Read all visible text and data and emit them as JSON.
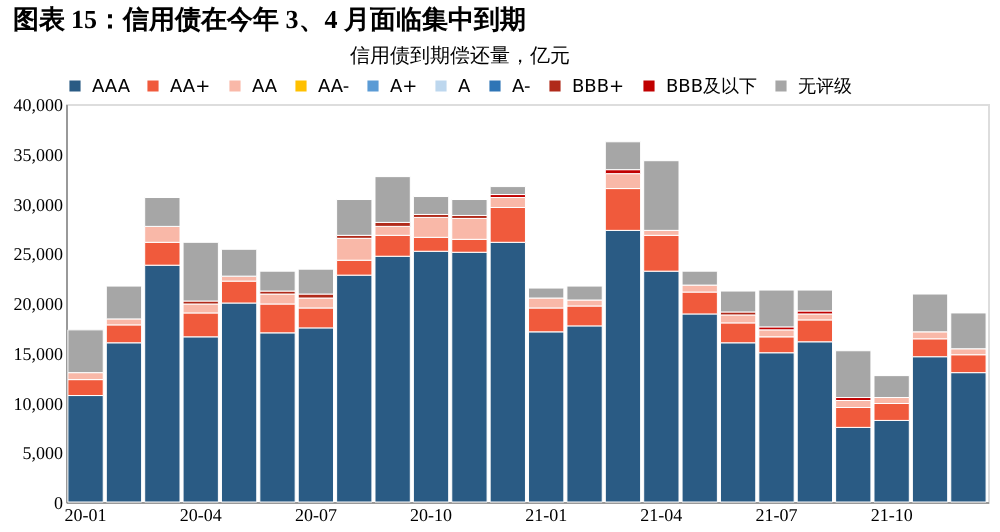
{
  "chart_data": {
    "type": "bar",
    "stacked": true,
    "title": "图表 15：信用债在今年 3、4 月面临集中到期",
    "legend_title": "信用债到期偿还量，亿元",
    "categories": [
      "20-01",
      null,
      null,
      "20-04",
      null,
      null,
      "20-07",
      null,
      null,
      "20-10",
      null,
      null,
      "21-01",
      null,
      null,
      "21-04",
      null,
      null,
      "21-07",
      null,
      null,
      "21-10",
      null,
      null
    ],
    "series": [
      {
        "name": "AAA",
        "color": "#2a5b84",
        "values": [
          10700,
          16000,
          23800,
          16600,
          20000,
          17000,
          17500,
          22800,
          24700,
          25200,
          25100,
          26100,
          17100,
          17700,
          27300,
          23200,
          18900,
          16000,
          15000,
          16100,
          7500,
          8200,
          14600,
          13000
        ]
      },
      {
        "name": "AA+",
        "color": "#f05a3c",
        "values": [
          1600,
          1800,
          2300,
          2400,
          2200,
          2900,
          2000,
          1500,
          2100,
          1400,
          1300,
          3500,
          2400,
          2000,
          4200,
          3600,
          2200,
          2000,
          1600,
          2200,
          2000,
          1700,
          1800,
          1800
        ]
      },
      {
        "name": "AA",
        "color": "#f9b8a8",
        "values": [
          700,
          600,
          1600,
          900,
          500,
          1000,
          1000,
          2200,
          900,
          2000,
          2100,
          1000,
          1000,
          600,
          1500,
          500,
          700,
          800,
          700,
          600,
          700,
          600,
          700,
          600
        ]
      },
      {
        "name": "AA-",
        "color": "#ffc000",
        "values": [
          0,
          0,
          0,
          0,
          0,
          0,
          0,
          0,
          0,
          0,
          0,
          0,
          0,
          0,
          0,
          0,
          0,
          0,
          0,
          0,
          0,
          0,
          0,
          0
        ]
      },
      {
        "name": "A+",
        "color": "#5b9bd5",
        "values": [
          0,
          0,
          0,
          0,
          0,
          0,
          0,
          0,
          0,
          0,
          0,
          0,
          0,
          0,
          0,
          0,
          0,
          0,
          0,
          0,
          0,
          0,
          0,
          0
        ]
      },
      {
        "name": "A",
        "color": "#bdd7ee",
        "values": [
          0,
          0,
          0,
          0,
          0,
          0,
          0,
          0,
          0,
          0,
          0,
          0,
          0,
          0,
          0,
          0,
          0,
          0,
          0,
          0,
          0,
          0,
          0,
          0
        ]
      },
      {
        "name": "A-",
        "color": "#2e75b6",
        "values": [
          0,
          0,
          0,
          0,
          0,
          0,
          0,
          0,
          0,
          0,
          0,
          0,
          0,
          0,
          0,
          0,
          0,
          0,
          0,
          0,
          0,
          0,
          0,
          0
        ]
      },
      {
        "name": "BBB+",
        "color": "#b02a1a",
        "values": [
          0,
          0,
          0,
          300,
          0,
          300,
          400,
          300,
          400,
          300,
          300,
          0,
          0,
          0,
          0,
          0,
          0,
          300,
          0,
          0,
          0,
          0,
          0,
          0
        ]
      },
      {
        "name": "BBB及以下",
        "color": "#c00000",
        "values": [
          0,
          0,
          0,
          0,
          0,
          0,
          0,
          0,
          0,
          0,
          0,
          300,
          0,
          0,
          400,
          0,
          0,
          0,
          300,
          300,
          300,
          0,
          0,
          0
        ]
      },
      {
        "name": "无评级",
        "color": "#a6a6a6",
        "values": [
          4300,
          3300,
          2900,
          5900,
          2700,
          2000,
          2500,
          3600,
          4600,
          1800,
          1600,
          800,
          1000,
          1400,
          2800,
          7000,
          1400,
          2100,
          3700,
          2100,
          4700,
          2200,
          3800,
          3600
        ]
      }
    ],
    "ylim": [
      0,
      40000
    ],
    "yticks": [
      0,
      {
        "value": 5000,
        "label": "5,000"
      },
      {
        "value": 10000,
        "label": "10,000"
      },
      {
        "value": 15000,
        "label": "15,000"
      },
      {
        "value": 20000,
        "label": "20,000"
      },
      {
        "value": 25000,
        "label": "25,000"
      },
      {
        "value": 30000,
        "label": "30,000"
      },
      {
        "value": 35000,
        "label": "35,000"
      },
      {
        "value": 40000,
        "label": "40,000"
      }
    ],
    "grid": false,
    "legend": "top"
  }
}
